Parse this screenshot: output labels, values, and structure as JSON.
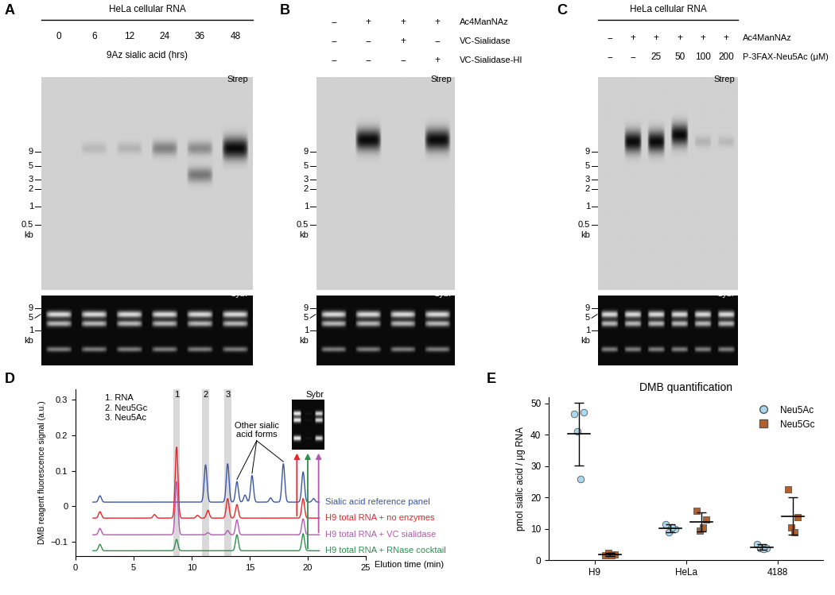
{
  "chart_data": [
    {
      "type": "gel",
      "panel": "A",
      "group_label": "HeLa cellular RNA",
      "lane_labels": [
        "0",
        "6",
        "12",
        "24",
        "36",
        "48"
      ],
      "lane_title": "9Az sialic acid (hrs)",
      "blots": [
        {
          "type": "blot",
          "label": "Strep",
          "markers_kb": [
            9,
            5,
            3,
            2,
            1,
            0.5
          ],
          "unit": "kb",
          "lanes": [
            [],
            [
              {
                "kb": 10,
                "signal": 0.12
              }
            ],
            [
              {
                "kb": 10,
                "signal": 0.15
              }
            ],
            [
              {
                "kb": 10,
                "signal": 0.4
              }
            ],
            [
              {
                "kb": 10,
                "signal": 0.35
              },
              {
                "kb": 3.5,
                "signal": 0.45
              }
            ],
            [
              {
                "kb": 10,
                "signal": 1.0
              }
            ]
          ]
        },
        {
          "type": "stain",
          "label": "Sybr",
          "markers_kb": [
            9,
            5,
            1
          ],
          "unit": "kb",
          "bands": [
            {
              "kb": 4.7,
              "signal": 0.9
            },
            {
              "kb": 1.9,
              "signal": 0.75
            },
            {
              "kb": 0.15,
              "signal": 0.5
            }
          ]
        }
      ]
    },
    {
      "type": "gel",
      "panel": "B",
      "rows": [
        {
          "label": "Ac4ManNAz",
          "values": [
            "−",
            "+",
            "+",
            "+"
          ]
        },
        {
          "label": "VC-Sialidase",
          "values": [
            "−",
            "−",
            "+",
            "−"
          ]
        },
        {
          "label": "VC-Sialidase-HI",
          "values": [
            "−",
            "−",
            "−",
            "+"
          ]
        }
      ],
      "blots": [
        {
          "type": "blot",
          "label": "Strep",
          "markers_kb": [
            9,
            5,
            3,
            2,
            1,
            0.5
          ],
          "unit": "kb",
          "lanes": [
            [],
            [
              {
                "kb": 14,
                "signal": 1.0
              }
            ],
            [],
            [
              {
                "kb": 14,
                "signal": 1.0
              }
            ]
          ]
        },
        {
          "type": "stain",
          "label": "Sybr",
          "markers_kb": [
            9,
            5,
            1
          ],
          "unit": "kb",
          "bands": [
            {
              "kb": 4.7,
              "signal": 0.9
            },
            {
              "kb": 1.9,
              "signal": 0.75
            },
            {
              "kb": 0.15,
              "signal": 0.5
            }
          ]
        }
      ]
    },
    {
      "type": "gel",
      "panel": "C",
      "group_label": "HeLa cellular RNA",
      "rows": [
        {
          "label": "Ac4ManNAz",
          "values": [
            "−",
            "+",
            "+",
            "+",
            "+",
            "+"
          ]
        },
        {
          "label": "P-3FAX-Neu5Ac (μM)",
          "values": [
            "−",
            "−",
            "25",
            "50",
            "100",
            "200"
          ]
        }
      ],
      "blots": [
        {
          "type": "blot",
          "label": "Strep",
          "markers_kb": [
            9,
            5,
            3,
            2,
            1,
            0.5
          ],
          "unit": "kb",
          "lanes": [
            [],
            [
              {
                "kb": 13,
                "signal": 1.0
              }
            ],
            [
              {
                "kb": 13,
                "signal": 1.0
              }
            ],
            [
              {
                "kb": 17,
                "signal": 1.0
              }
            ],
            [
              {
                "kb": 13,
                "signal": 0.15
              }
            ],
            [
              {
                "kb": 13,
                "signal": 0.12
              }
            ]
          ]
        },
        {
          "type": "stain",
          "label": "Sybr",
          "markers_kb": [
            9,
            5,
            1
          ],
          "unit": "kb",
          "bands": [
            {
              "kb": 4.7,
              "signal": 0.9
            },
            {
              "kb": 1.9,
              "signal": 0.75
            },
            {
              "kb": 0.15,
              "signal": 0.5
            }
          ]
        }
      ]
    },
    {
      "type": "line",
      "panel": "D",
      "xlabel": "Elution time (min)",
      "ylabel": "DMB reagent fluorescence signal (a.u.)",
      "xlim": [
        0,
        25
      ],
      "xticks": [
        0,
        5,
        10,
        15,
        20,
        25
      ],
      "ylim": [
        -0.14,
        0.33
      ],
      "yticks": [
        {
          "value": -0.1,
          "label": "−0.1"
        },
        0,
        0.1,
        0.2,
        0.3
      ],
      "time_range": [
        1.5,
        21.0
      ],
      "peak_markers": [
        {
          "label": "1",
          "x": 8.7
        },
        {
          "label": "2",
          "x": 11.2
        },
        {
          "label": "3",
          "x": 13.1
        }
      ],
      "peak_key": [
        "1. RNA",
        "2. Neu5Gc",
        "3. Neu5Ac"
      ],
      "annotation": {
        "text": "Other sialic\nacid forms",
        "x": [
          13.9,
          15.2,
          17.9
        ]
      },
      "series": [
        {
          "name": "Sialic acid reference panel",
          "color": "#3a57a7",
          "baseline": 0.012,
          "peaks": {
            "x": [
              2.1,
              11.2,
              13.1,
              13.9,
              14.6,
              15.2,
              16.8,
              17.9,
              19.6,
              20.5
            ],
            "height": [
              0.018,
              0.105,
              0.108,
              0.058,
              0.02,
              0.075,
              0.012,
              0.108,
              0.085,
              0.01
            ]
          }
        },
        {
          "name": "H9 total RNA + no enzymes",
          "color": "#e8262b",
          "baseline": -0.033,
          "peaks": {
            "x": [
              2.1,
              6.8,
              8.7,
              10.5,
              11.4,
              13.1,
              13.9,
              19.6
            ],
            "height": [
              0.018,
              0.01,
              0.2,
              0.008,
              0.022,
              0.055,
              0.038,
              0.055
            ]
          }
        },
        {
          "name": "H9 total RNA + VC sialidase",
          "color": "#b35ab0",
          "baseline": -0.08,
          "peaks": {
            "x": [
              2.1,
              8.7,
              11.4,
              13.1,
              13.9,
              19.6
            ],
            "height": [
              0.018,
              0.15,
              0.006,
              0.012,
              0.042,
              0.045
            ]
          }
        },
        {
          "name": "H9 total RNA + RNase cocktail",
          "color": "#2f8f4f",
          "baseline": -0.125,
          "peaks": {
            "x": [
              2.1,
              8.7,
              13.9,
              19.6
            ],
            "height": [
              0.018,
              0.032,
              0.045,
              0.048
            ]
          }
        }
      ],
      "inset": {
        "label": "Sybr",
        "bands_kb": [
          4.7,
          1.9,
          0.15
        ],
        "lanes": [
          {
            "series": "H9 total RNA + no enzymes",
            "signal": 1.0
          },
          {
            "series": "H9 total RNA + RNase cocktail",
            "signal": 0.05
          },
          {
            "series": "H9 total RNA + VC sialidase",
            "signal": 0.9
          }
        ]
      }
    },
    {
      "type": "scatter",
      "panel": "E",
      "title": "DMB quantification",
      "ylabel": "pmol sialic acid / μg RNA",
      "categories": [
        "H9",
        "HeLa",
        "4188"
      ],
      "ylim": [
        0,
        52
      ],
      "yticks": [
        0,
        10,
        20,
        30,
        40,
        50
      ],
      "legend": "upper right",
      "series": [
        {
          "name": "Neu5Ac",
          "color": "#a8d8ef",
          "marker": "circle",
          "values": [
            [
              46.8,
              47.3,
              41.0,
              26.0
            ],
            [
              11.5,
              10.0,
              9.0,
              10.5
            ],
            [
              5.0,
              3.9,
              3.8,
              3.5
            ]
          ],
          "mean": [
            40.3,
            10.2,
            4.1
          ],
          "sd": [
            10.0,
            1.3,
            0.9
          ]
        },
        {
          "name": "Neu5Gc",
          "color": "#b5602a",
          "marker": "square",
          "values": [
            [
              1.5,
              1.8,
              2.3,
              1.5
            ],
            [
              15.7,
              13.0,
              9.5,
              10.5
            ],
            [
              22.7,
              13.8,
              10.5,
              9.0
            ]
          ],
          "mean": [
            1.8,
            12.2,
            14.0
          ],
          "sd": [
            0.5,
            3.0,
            6.0
          ]
        }
      ]
    }
  ]
}
